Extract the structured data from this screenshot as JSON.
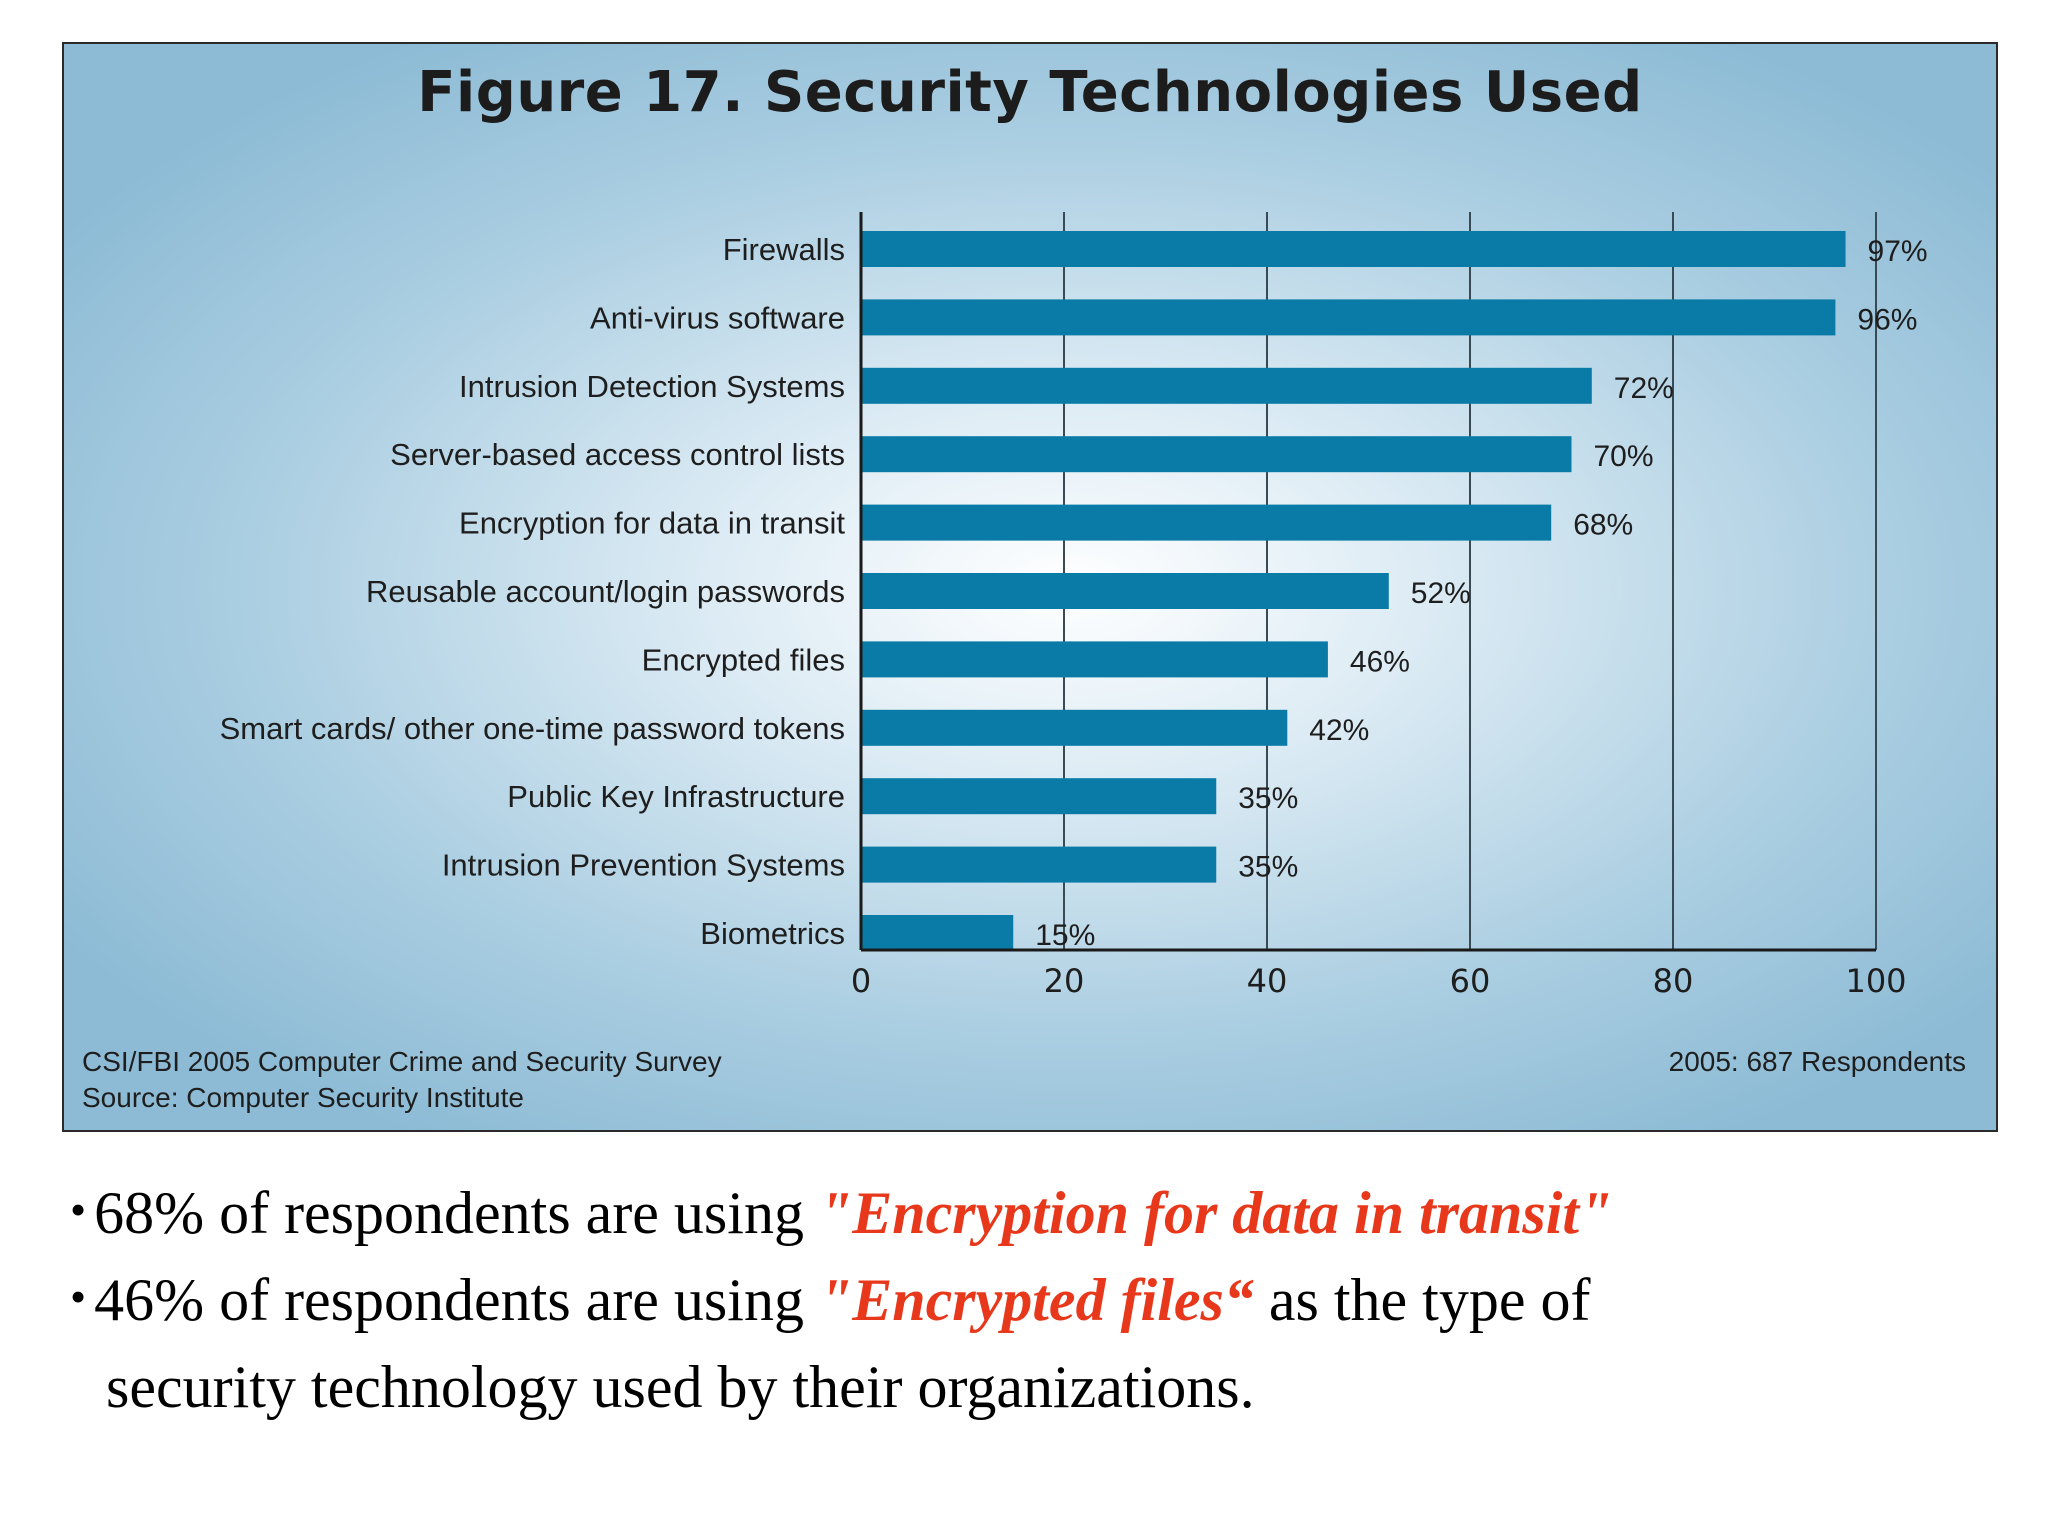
{
  "chart_data": {
    "type": "bar",
    "orientation": "horizontal",
    "title": "Figure 17. Security Technologies Used",
    "categories": [
      "Firewalls",
      "Anti-virus software",
      "Intrusion Detection Systems",
      "Server-based access control lists",
      "Encryption for data in transit",
      "Reusable account/login passwords",
      "Encrypted files",
      "Smart cards/ other one-time password tokens",
      "Public Key Infrastructure",
      "Intrusion Prevention Systems",
      "Biometrics"
    ],
    "values": [
      97,
      96,
      72,
      70,
      68,
      52,
      46,
      42,
      35,
      35,
      15
    ],
    "value_labels": [
      "97%",
      "96%",
      "72%",
      "70%",
      "68%",
      "52%",
      "46%",
      "42%",
      "35%",
      "35%",
      "15%"
    ],
    "xlim": [
      0,
      100
    ],
    "x_ticks": [
      "0",
      "20",
      "40",
      "60",
      "80",
      "100"
    ],
    "grid": "vertical",
    "bar_color": "#0a7ba6",
    "footer_left": [
      "CSI/FBI 2005 Computer Crime and Security Survey",
      "Source: Computer Security Institute"
    ],
    "footer_right": "2005: 687 Respondents"
  },
  "bullets": [
    {
      "before": "68% of respondents are using ",
      "emphasis": "\"Encryption for data in transit\"",
      "after": ""
    },
    {
      "before": "46% of respondents are using ",
      "emphasis": "\"Encrypted files“",
      "after": " as the type of",
      "continuation": "security technology used by their organizations."
    }
  ],
  "colors": {
    "emphasis": "#e8381c",
    "bar": "#0a7ba6"
  }
}
